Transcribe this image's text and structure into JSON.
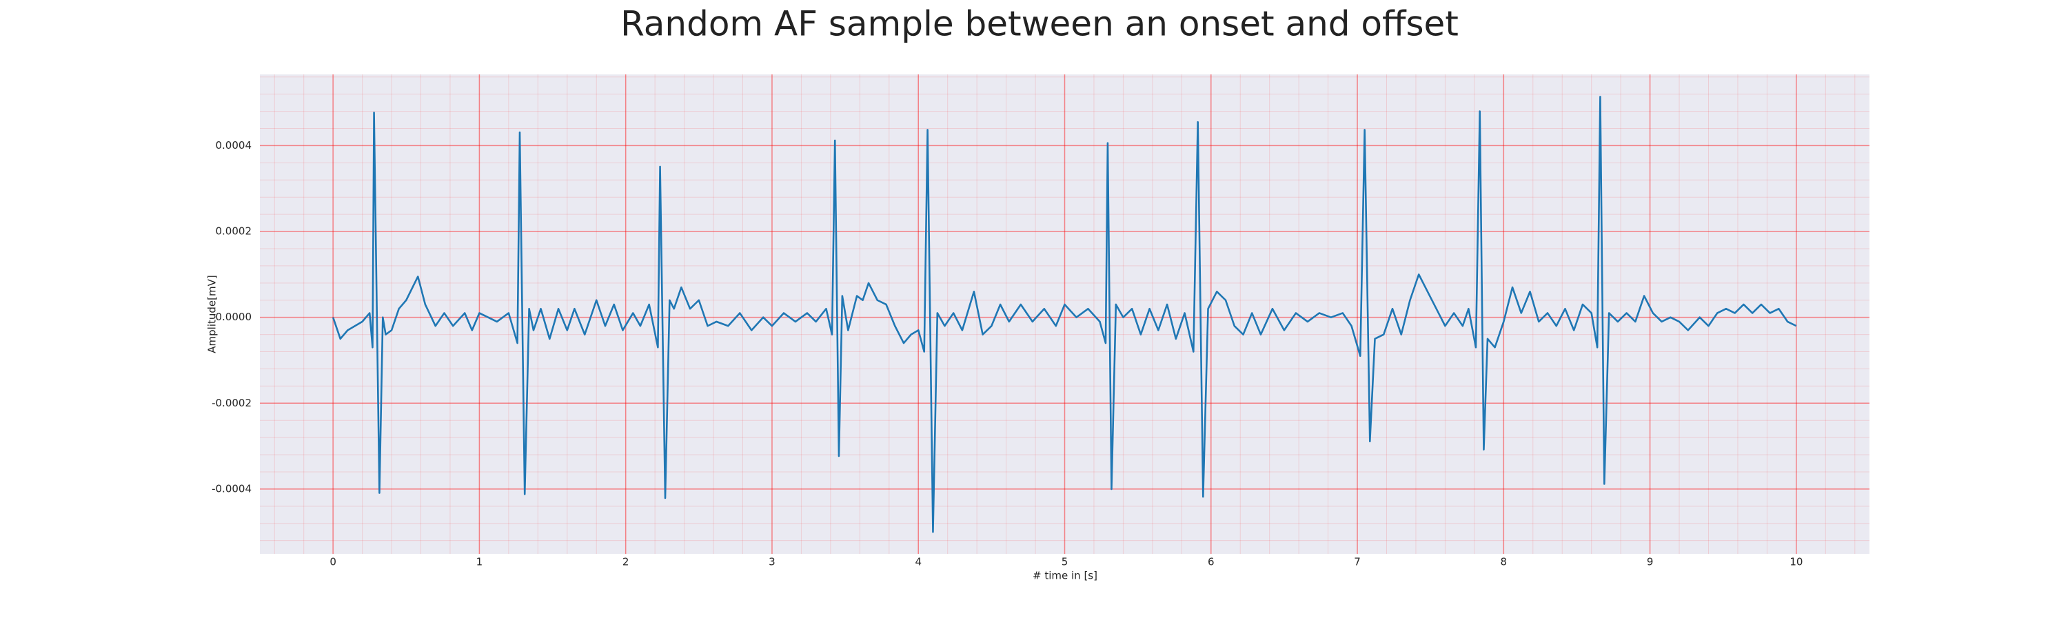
{
  "chart_data": {
    "type": "line",
    "title": "Random AF sample between an onset and offset",
    "x_label": "# time in [s]",
    "y_label": "Amplitude[mV]",
    "xlim": [
      -0.5,
      10.5
    ],
    "ylim": [
      -0.000551,
      0.000566
    ],
    "xticks": [
      0,
      1,
      2,
      3,
      4,
      5,
      6,
      7,
      8,
      9,
      10
    ],
    "yticks": [
      {
        "value": -0.0004,
        "label": "-0.0004"
      },
      {
        "value": -0.0002,
        "label": "-0.0002"
      },
      {
        "value": 0,
        "label": "0.0000"
      },
      {
        "value": 0.0002,
        "label": "0.0002"
      },
      {
        "value": 0.0004,
        "label": "0.0004"
      }
    ],
    "grid": true,
    "minor_grid": true,
    "grid_color": "#ff0000",
    "background": "#eaeaf2",
    "series": [
      {
        "color": "#1f77b4",
        "x": [
          0,
          0.05,
          0.1,
          0.15,
          0.2,
          0.25,
          0.27,
          0.28,
          0.317,
          0.34,
          0.36,
          0.4,
          0.45,
          0.5,
          0.58,
          0.63,
          0.7,
          0.76,
          0.82,
          0.9,
          0.95,
          1.0,
          1.06,
          1.12,
          1.2,
          1.26,
          1.276,
          1.31,
          1.34,
          1.37,
          1.42,
          1.48,
          1.54,
          1.6,
          1.65,
          1.72,
          1.8,
          1.86,
          1.92,
          1.98,
          2.05,
          2.1,
          2.16,
          2.22,
          2.235,
          2.27,
          2.3,
          2.33,
          2.38,
          2.44,
          2.5,
          2.56,
          2.62,
          2.7,
          2.78,
          2.86,
          2.94,
          3.0,
          3.08,
          3.16,
          3.24,
          3.3,
          3.37,
          3.41,
          3.43,
          3.457,
          3.48,
          3.52,
          3.58,
          3.62,
          3.66,
          3.72,
          3.78,
          3.84,
          3.9,
          3.95,
          4.0,
          4.04,
          4.063,
          4.1,
          4.13,
          4.18,
          4.24,
          4.3,
          4.38,
          4.44,
          4.5,
          4.56,
          4.62,
          4.7,
          4.78,
          4.86,
          4.94,
          5.0,
          5.08,
          5.16,
          5.24,
          5.28,
          5.294,
          5.32,
          5.35,
          5.4,
          5.46,
          5.52,
          5.58,
          5.64,
          5.7,
          5.76,
          5.82,
          5.88,
          5.91,
          5.946,
          5.98,
          6.04,
          6.1,
          6.16,
          6.22,
          6.28,
          6.34,
          6.42,
          6.5,
          6.58,
          6.66,
          6.74,
          6.82,
          6.9,
          6.96,
          7.02,
          7.05,
          7.086,
          7.12,
          7.18,
          7.24,
          7.3,
          7.36,
          7.42,
          7.48,
          7.54,
          7.6,
          7.66,
          7.72,
          7.76,
          7.81,
          7.837,
          7.864,
          7.89,
          7.94,
          8.0,
          8.06,
          8.12,
          8.18,
          8.24,
          8.3,
          8.36,
          8.42,
          8.48,
          8.54,
          8.6,
          8.64,
          8.66,
          8.688,
          8.72,
          8.78,
          8.84,
          8.9,
          8.96,
          9.02,
          9.08,
          9.14,
          9.2,
          9.26,
          9.34,
          9.4,
          9.46,
          9.52,
          9.58,
          9.64,
          9.7,
          9.76,
          9.82,
          9.88,
          9.94,
          10.0
        ],
        "values": [
          0,
          -5e-05,
          -3e-05,
          -2e-05,
          -1e-05,
          1e-05,
          -7e-05,
          0.000477,
          -0.000409,
          0,
          -4e-05,
          -3e-05,
          2e-05,
          4e-05,
          9.5e-05,
          3e-05,
          -2e-05,
          1e-05,
          -2e-05,
          1e-05,
          -3e-05,
          1e-05,
          0,
          -1e-05,
          1e-05,
          -6e-05,
          0.000431,
          -0.000412,
          2e-05,
          -3e-05,
          2e-05,
          -5e-05,
          2e-05,
          -3e-05,
          2e-05,
          -4e-05,
          4e-05,
          -2e-05,
          3e-05,
          -3e-05,
          1e-05,
          -2e-05,
          3e-05,
          -7e-05,
          0.000351,
          -0.000421,
          4e-05,
          2e-05,
          7e-05,
          2e-05,
          4e-05,
          -2e-05,
          -1e-05,
          -2e-05,
          1e-05,
          -3e-05,
          0,
          -2e-05,
          1e-05,
          -1e-05,
          1e-05,
          -1e-05,
          2e-05,
          -4e-05,
          0.000412,
          -0.000323,
          5e-05,
          -3e-05,
          5e-05,
          4e-05,
          8e-05,
          4e-05,
          3e-05,
          -2e-05,
          -6e-05,
          -4e-05,
          -3e-05,
          -8e-05,
          0.000437,
          -0.0005,
          1e-05,
          -2e-05,
          1e-05,
          -3e-05,
          6e-05,
          -4e-05,
          -2e-05,
          3e-05,
          -1e-05,
          3e-05,
          -1e-05,
          2e-05,
          -2e-05,
          3e-05,
          0,
          2e-05,
          -1e-05,
          -6e-05,
          0.000406,
          -0.0004,
          3e-05,
          0,
          2e-05,
          -4e-05,
          2e-05,
          -3e-05,
          3e-05,
          -5e-05,
          1e-05,
          -8e-05,
          0.000455,
          -0.000418,
          2e-05,
          6e-05,
          4e-05,
          -2e-05,
          -4e-05,
          1e-05,
          -4e-05,
          2e-05,
          -3e-05,
          1e-05,
          -1e-05,
          1e-05,
          0,
          1e-05,
          -2e-05,
          -9e-05,
          0.000437,
          -0.000289,
          -5e-05,
          -4e-05,
          2e-05,
          -4e-05,
          4e-05,
          0.0001,
          6e-05,
          2e-05,
          -2e-05,
          1e-05,
          -2e-05,
          2e-05,
          -7e-05,
          0.00048,
          -0.000308,
          -5e-05,
          -7e-05,
          -1e-05,
          7e-05,
          1e-05,
          6e-05,
          -1e-05,
          1e-05,
          -2e-05,
          2e-05,
          -3e-05,
          3e-05,
          1e-05,
          -7e-05,
          0.000514,
          -0.000388,
          1e-05,
          -1e-05,
          1e-05,
          -1e-05,
          5e-05,
          1e-05,
          -1e-05,
          0,
          -1e-05,
          -3e-05,
          0,
          -2e-05,
          1e-05,
          2e-05,
          1e-05,
          3e-05,
          1e-05,
          3e-05,
          1e-05,
          2e-05,
          -1e-05,
          -2e-05
        ]
      }
    ]
  }
}
